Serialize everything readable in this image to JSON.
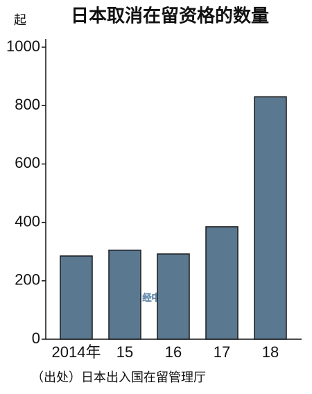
{
  "chart_data": {
    "type": "bar",
    "title": "日本取消在留资格的数量",
    "unit": "起",
    "categories": [
      "2014年",
      "15",
      "16",
      "17",
      "18"
    ],
    "values": [
      285,
      305,
      292,
      385,
      830
    ],
    "color": "#5b7891",
    "ylim": [
      0,
      1000
    ],
    "yticks": [
      0,
      200,
      400,
      600,
      800,
      1000
    ],
    "source": "（出处）日本出入国在留管理厅",
    "watermark": "日经中文网"
  }
}
